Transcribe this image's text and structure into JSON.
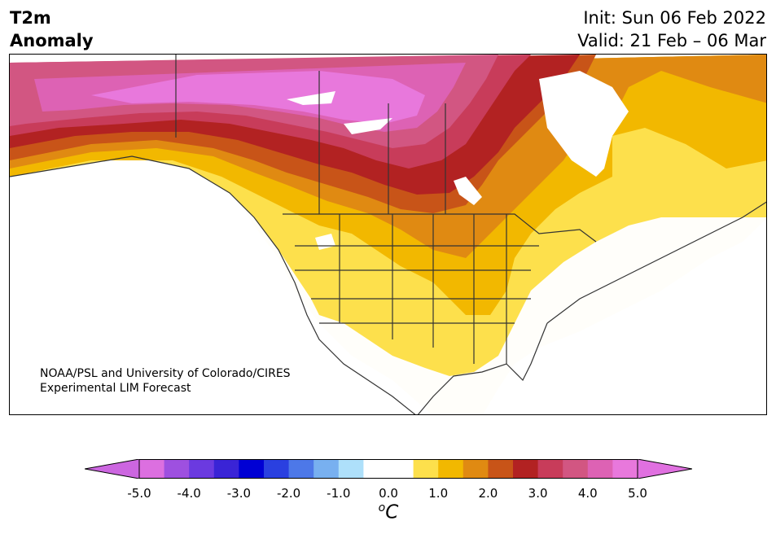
{
  "header": {
    "title_line1": "T2m",
    "title_line2": "Anomaly",
    "init": "Init: Sun 06 Feb 2022",
    "valid": "Valid: 21 Feb – 06 Mar"
  },
  "credit": {
    "line1": "NOAA/PSL and University of Colorado/CIRES",
    "line2": "Experimental LIM Forecast"
  },
  "colorbar": {
    "units_base": "C",
    "units_sup": "o",
    "ticks": [
      "-5.0",
      "-4.0",
      "-3.0",
      "-2.0",
      "-1.0",
      "0.0",
      "1.0",
      "2.0",
      "3.0",
      "4.0",
      "5.0"
    ],
    "colors": [
      "#dc6fe0",
      "#9e50e0",
      "#6b3ae0",
      "#3a24d6",
      "#0000d4",
      "#2a40e0",
      "#4d78e8",
      "#78b0f0",
      "#aee0fa",
      "#ffffff",
      "#ffffff",
      "#fde04c",
      "#f2b800",
      "#e08a12",
      "#c85418",
      "#b22222",
      "#c83c5a",
      "#d25682",
      "#dd62b4",
      "#e878dc"
    ],
    "under_color": "#cc66e0",
    "over_color": "#e070e0"
  },
  "map": {
    "projection": "Lambert conformal, North America",
    "variable": "2m temperature anomaly",
    "land_background": "#fffefa",
    "boundary_color": "#333333"
  }
}
